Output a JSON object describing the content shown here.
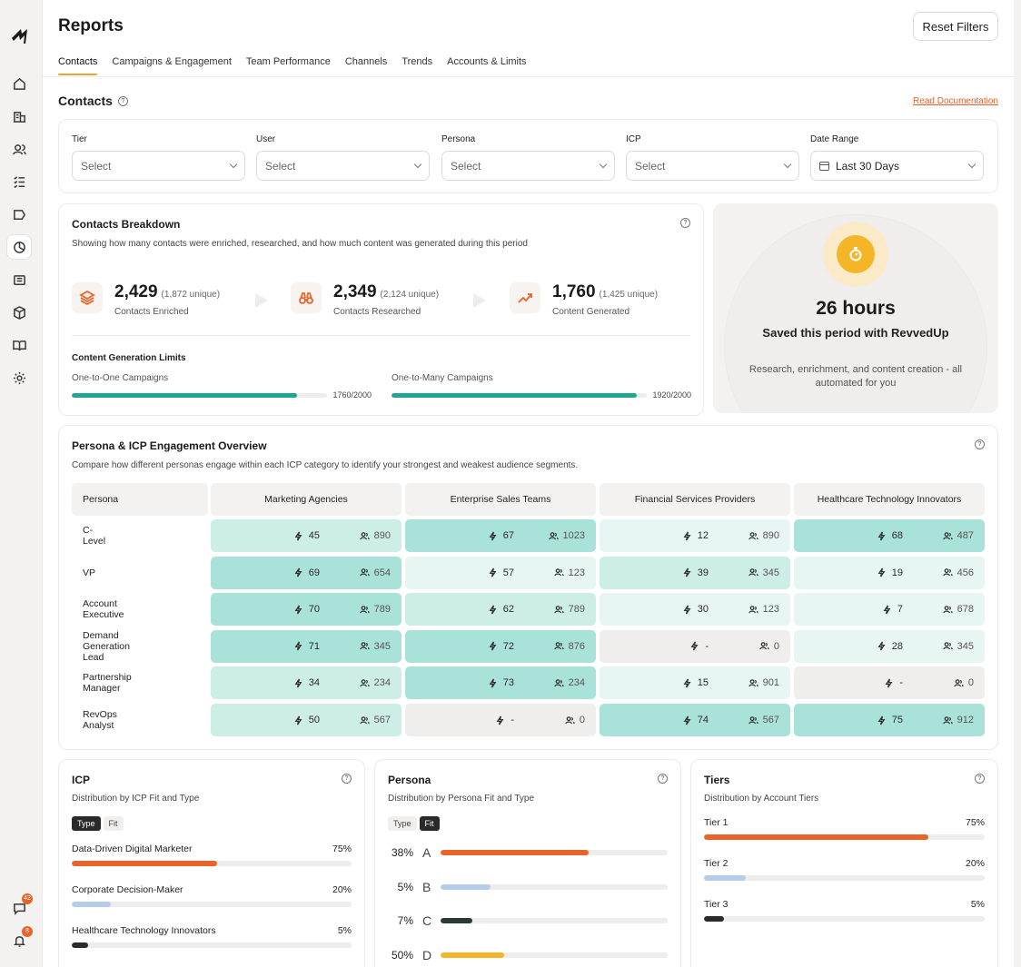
{
  "app": {
    "title": "Reports",
    "reset_label": "Reset Filters"
  },
  "tabs": [
    "Contacts",
    "Campaigns & Engagement",
    "Team Performance",
    "Channels",
    "Trends",
    "Accounts & Limits"
  ],
  "section": {
    "title": "Contacts",
    "doc_link": "Read Documentation"
  },
  "sidebar": {
    "icons": [
      "home-icon",
      "building-icon",
      "users-icon",
      "checklist-icon",
      "flag-icon",
      "pie-chart-icon",
      "newspaper-icon",
      "box-icon",
      "book-icon",
      "gear-icon"
    ],
    "messages_badge": "42",
    "notifications_badge": "8"
  },
  "filters": [
    {
      "label": "Tier",
      "value": "Select"
    },
    {
      "label": "User",
      "value": "Select"
    },
    {
      "label": "Persona",
      "value": "Select"
    },
    {
      "label": "ICP",
      "value": "Select"
    },
    {
      "label": "Date Range",
      "value": "Last 30 Days"
    }
  ],
  "breakdown": {
    "title": "Contacts Breakdown",
    "subtitle": "Showing how many contacts were enriched, researched, and how much content was generated during this period",
    "stats": [
      {
        "value": "2,429",
        "unique": "(1,872 unique)",
        "label": "Contacts Enriched",
        "icon": "layers-icon"
      },
      {
        "value": "2,349",
        "unique": "(2,124 unique)",
        "label": "Contacts Researched",
        "icon": "binoculars-icon"
      },
      {
        "value": "1,760",
        "unique": "(1,425 unique)",
        "label": "Content Generated",
        "icon": "trend-arrow-icon"
      }
    ],
    "limits_title": "Content Generation Limits",
    "limits": [
      {
        "label": "One-to-One Campaigns",
        "value": "1760/2000",
        "fraction": 0.88
      },
      {
        "label": "One-to-Many Campaigns",
        "value": "1920/2000",
        "fraction": 0.96
      }
    ]
  },
  "saved": {
    "hours": "26 hours",
    "subtitle": "Saved this period with RevvedUp",
    "description": "Research, enrichment, and content creation - all automated for you"
  },
  "persona_overview": {
    "title": "Persona & ICP Engagement Overview",
    "subtitle": "Compare how different personas engage within each ICP category to identify your strongest and weakest audience segments.",
    "row_header": "Persona",
    "columns": [
      "Marketing Agencies",
      "Enterprise Sales Teams",
      "Financial Services Providers",
      "Healthcare Technology Innovators"
    ],
    "rows": [
      {
        "persona": "C-Level",
        "cells": [
          {
            "eng": "45",
            "people": "890",
            "level": 2
          },
          {
            "eng": "67",
            "people": "1023",
            "level": 3
          },
          {
            "eng": "12",
            "people": "890",
            "level": 1
          },
          {
            "eng": "68",
            "people": "487",
            "level": 3
          }
        ]
      },
      {
        "persona": "VP",
        "cells": [
          {
            "eng": "69",
            "people": "654",
            "level": 3
          },
          {
            "eng": "57",
            "people": "123",
            "level": 1
          },
          {
            "eng": "39",
            "people": "345",
            "level": 2
          },
          {
            "eng": "19",
            "people": "456",
            "level": 1
          }
        ]
      },
      {
        "persona": "Account Executive",
        "cells": [
          {
            "eng": "70",
            "people": "789",
            "level": 3
          },
          {
            "eng": "62",
            "people": "789",
            "level": 2
          },
          {
            "eng": "30",
            "people": "123",
            "level": 1
          },
          {
            "eng": "7",
            "people": "678",
            "level": 1
          }
        ]
      },
      {
        "persona": "Demand Generation Lead",
        "cells": [
          {
            "eng": "71",
            "people": "345",
            "level": 3
          },
          {
            "eng": "72",
            "people": "876",
            "level": 3
          },
          {
            "eng": "-",
            "people": "0",
            "level": 0
          },
          {
            "eng": "28",
            "people": "345",
            "level": 1
          }
        ]
      },
      {
        "persona": "Partnership Manager",
        "cells": [
          {
            "eng": "34",
            "people": "234",
            "level": 2
          },
          {
            "eng": "73",
            "people": "234",
            "level": 3
          },
          {
            "eng": "15",
            "people": "901",
            "level": 1
          },
          {
            "eng": "-",
            "people": "0",
            "level": 0
          }
        ]
      },
      {
        "persona": "RevOps Analyst",
        "cells": [
          {
            "eng": "50",
            "people": "567",
            "level": 2
          },
          {
            "eng": "-",
            "people": "0",
            "level": 0
          },
          {
            "eng": "74",
            "people": "567",
            "level": 3
          },
          {
            "eng": "75",
            "people": "912",
            "level": 3
          }
        ]
      }
    ]
  },
  "icp": {
    "title": "ICP",
    "subtitle": "Distribution by ICP Fit and Type",
    "toggle": [
      "Type",
      "Fit"
    ],
    "active": "Type",
    "items": [
      {
        "label": "Data-Driven Digital Marketer",
        "pct": "75%",
        "fraction": 0.52,
        "color": "#e8642a"
      },
      {
        "label": "Corporate Decision-Maker",
        "pct": "20%",
        "fraction": 0.14,
        "color": "#b3cdea"
      },
      {
        "label": "Healthcare Technology Innovators",
        "pct": "5%",
        "fraction": 0.06,
        "color": "#2a2a2a"
      }
    ]
  },
  "persona": {
    "title": "Persona",
    "subtitle": "Distribution by Persona Fit and Type",
    "toggle": [
      "Type",
      "Fit"
    ],
    "active": "Fit",
    "items": [
      {
        "pct": "38%",
        "letter": "A",
        "fraction": 0.65,
        "color": "#e8642a"
      },
      {
        "pct": "5%",
        "letter": "B",
        "fraction": 0.22,
        "color": "#b3cdea"
      },
      {
        "pct": "7%",
        "letter": "C",
        "fraction": 0.14,
        "color": "#2a3a34"
      },
      {
        "pct": "50%",
        "letter": "D",
        "fraction": 0.28,
        "color": "#f4b628"
      }
    ]
  },
  "tiers": {
    "title": "Tiers",
    "subtitle": "Distribution by Account Tiers",
    "items": [
      {
        "label": "Tier 1",
        "pct": "75%",
        "fraction": 0.8,
        "color": "#e8642a"
      },
      {
        "label": "Tier 2",
        "pct": "20%",
        "fraction": 0.15,
        "color": "#b3cdea"
      },
      {
        "label": "Tier 3",
        "pct": "5%",
        "fraction": 0.07,
        "color": "#2a2a2a"
      }
    ]
  }
}
